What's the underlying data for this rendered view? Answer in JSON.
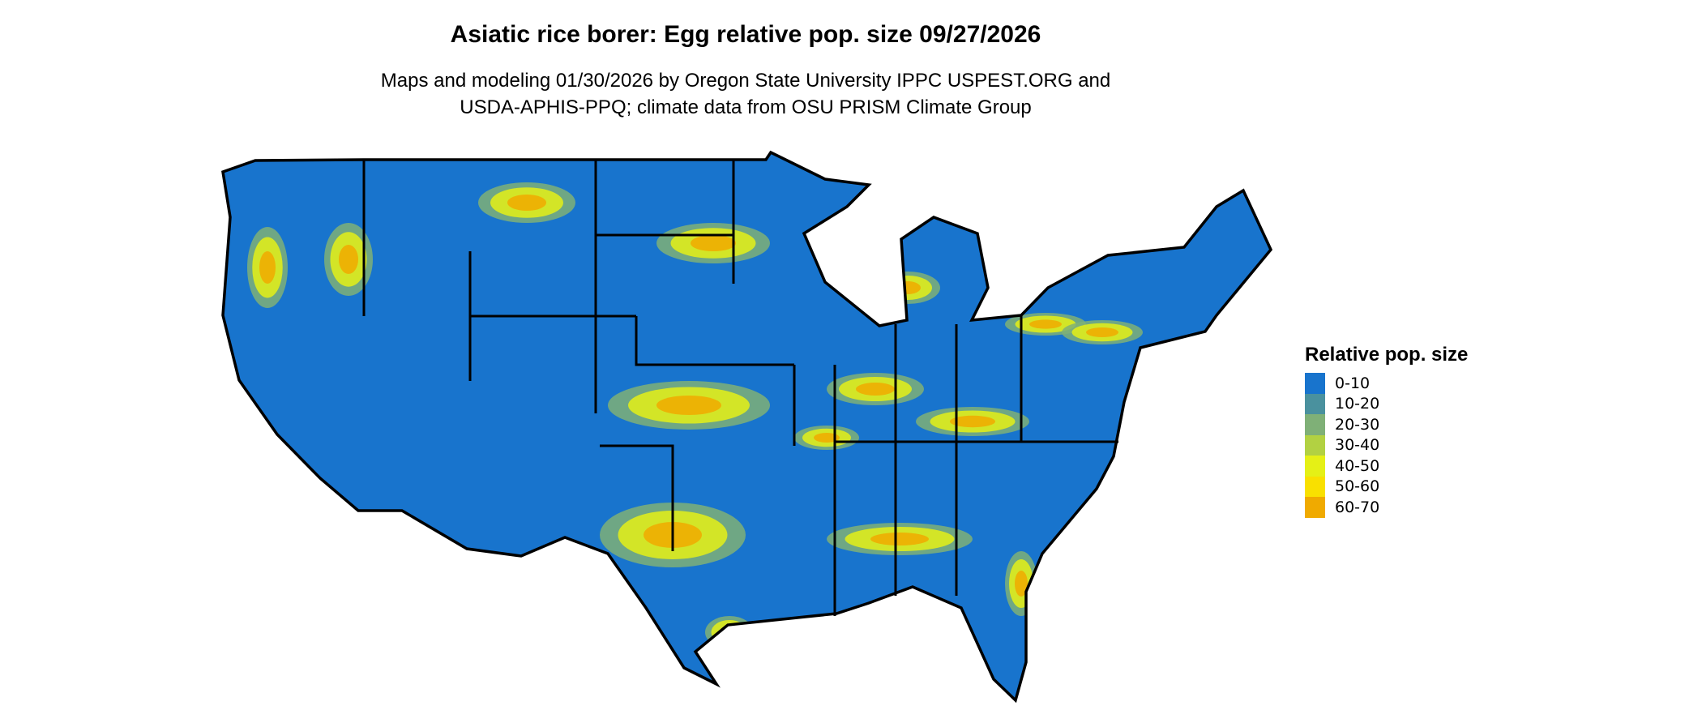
{
  "title": "Asiatic rice borer: Egg relative pop. size 09/27/2026",
  "subtitle_lines": [
    "Maps and modeling 01/30/2026 by Oregon State University IPPC USPEST.ORG and",
    "USDA-APHIS-PPQ; climate data from OSU PRISM Climate Group"
  ],
  "legend": {
    "title": "Relative pop. size",
    "items": [
      {
        "label": "0-10",
        "color": "#1874CD"
      },
      {
        "label": "10-20",
        "color": "#4A919E"
      },
      {
        "label": "20-30",
        "color": "#7FB077"
      },
      {
        "label": "30-40",
        "color": "#B2D142"
      },
      {
        "label": "40-50",
        "color": "#E5F016"
      },
      {
        "label": "50-60",
        "color": "#F9E000"
      },
      {
        "label": "60-70",
        "color": "#F0AA00"
      }
    ]
  },
  "map": {
    "region": "Contiguous United States",
    "boundary_color": "#000000"
  }
}
